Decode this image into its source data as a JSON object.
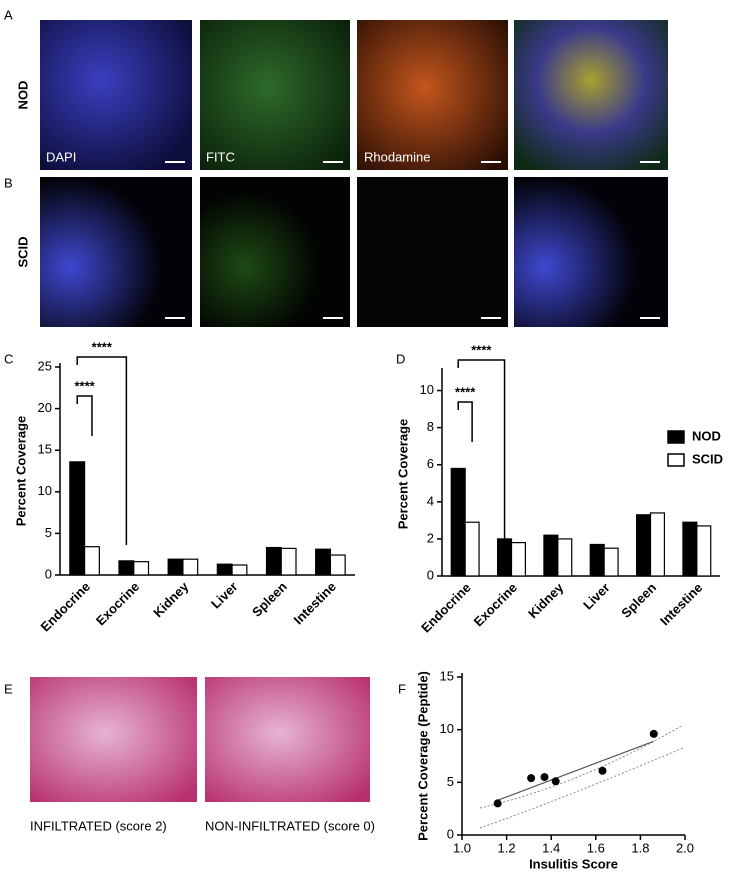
{
  "panels": [
    "A",
    "B",
    "C",
    "D",
    "E",
    "F"
  ],
  "row_labels": [
    "NOD",
    "SCID"
  ],
  "channel_labels": [
    "DAPI",
    "FITC",
    "Rhodamine"
  ],
  "histology_captions": [
    "INFILTRATED (score 2)",
    "NON-INFILTRATED (score 0)"
  ],
  "chart_data": [
    {
      "type": "bar",
      "ylabel": "Percent Coverage",
      "categories": [
        "Endocrine",
        "Exocrine",
        "Kidney",
        "Liver",
        "Spleen",
        "Intestine"
      ],
      "series": [
        {
          "color": "#000000",
          "values": [
            13.6,
            1.7,
            1.9,
            1.3,
            3.3,
            3.1
          ]
        },
        {
          "color": "#ffffff",
          "values": [
            3.4,
            1.6,
            1.9,
            1.2,
            3.2,
            2.4
          ]
        }
      ],
      "ylim": [
        0,
        25
      ],
      "yticks": [
        0,
        5,
        10,
        15,
        20,
        25
      ],
      "annotations": [
        "****",
        "****"
      ]
    },
    {
      "type": "bar",
      "ylabel": "Percent Coverage",
      "categories": [
        "Endocrine",
        "Exocrine",
        "Kidney",
        "Liver",
        "Spleen",
        "Intestine"
      ],
      "series": [
        {
          "name": "NOD",
          "color": "#000000",
          "values": [
            5.8,
            2.0,
            2.2,
            1.7,
            3.3,
            2.9
          ]
        },
        {
          "name": "SCID",
          "color": "#ffffff",
          "values": [
            2.9,
            1.8,
            2.0,
            1.5,
            3.4,
            2.7
          ]
        }
      ],
      "ylim": [
        0,
        11
      ],
      "yticks": [
        0,
        2,
        4,
        6,
        8,
        10
      ],
      "annotations": [
        "****",
        "****"
      ],
      "legend": "right"
    },
    {
      "type": "scatter",
      "xlabel": "Insulitis Score",
      "ylabel": "Percent Coverage (Peptide)",
      "x": [
        1.16,
        1.31,
        1.37,
        1.42,
        1.63,
        1.86
      ],
      "y": [
        3.0,
        5.4,
        5.5,
        5.1,
        6.1,
        9.6
      ],
      "color": "#000000",
      "xlim": [
        1.0,
        2.0
      ],
      "xticks": [
        {
          "value": 1.0,
          "label": "1.0"
        },
        1.2,
        1.4,
        1.6,
        1.8,
        {
          "value": 2.0,
          "label": "2.0"
        }
      ],
      "ylim": [
        0,
        15
      ],
      "yticks": [
        0,
        5,
        10,
        15
      ],
      "fit": {
        "x": [
          1.16,
          1.86
        ],
        "y": [
          3.3,
          8.9
        ]
      }
    }
  ]
}
